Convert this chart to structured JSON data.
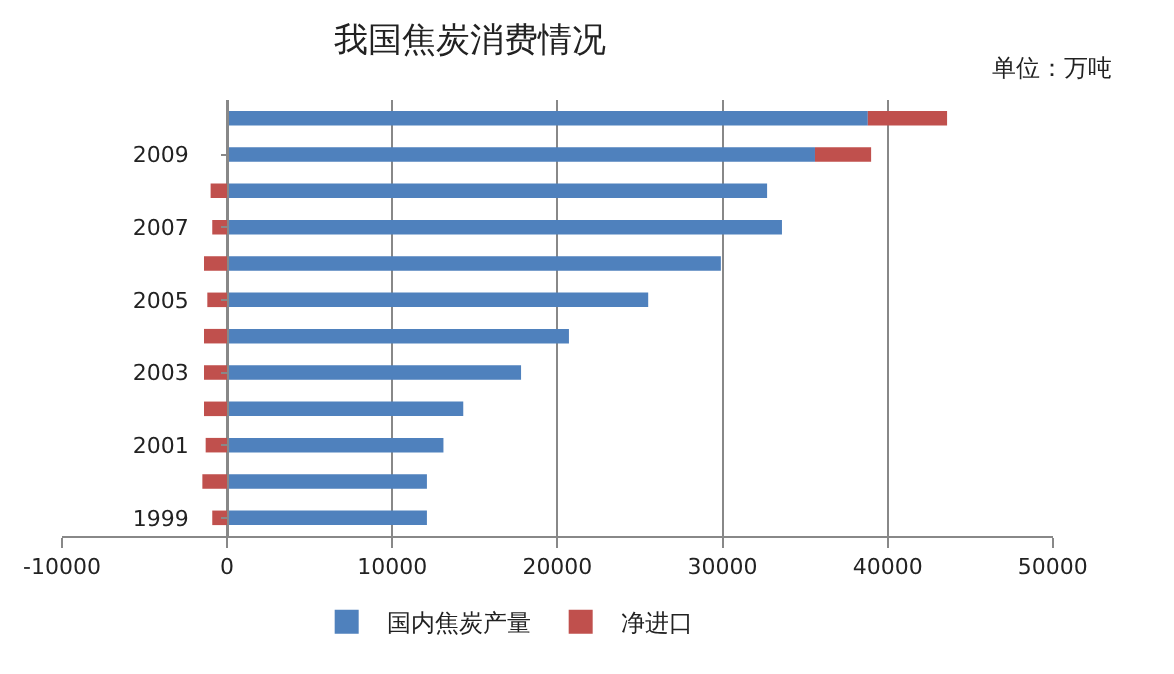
{
  "chart_data": {
    "type": "bar",
    "orientation": "horizontal",
    "stacked": true,
    "title": "我国焦炭消费情况",
    "subtitle": "单位：万吨",
    "categories": [
      null,
      "2009",
      null,
      "2007",
      null,
      "2005",
      null,
      "2003",
      null,
      "2001",
      null,
      "1999"
    ],
    "series": [
      {
        "name": "国内焦炭产量",
        "color": "#4f81bd",
        "values": [
          38800,
          35600,
          32700,
          33600,
          29900,
          25500,
          20700,
          17800,
          14300,
          13100,
          12100,
          12100
        ]
      },
      {
        "name": "净进口",
        "color": "#c0504d",
        "values": [
          4800,
          3400,
          -1000,
          -900,
          -1400,
          -1200,
          -1400,
          -1400,
          -1400,
          -1300,
          -1500,
          -900
        ]
      }
    ],
    "xlim": [
      -10000,
      50000
    ],
    "xticks": [
      -10000,
      0,
      10000,
      20000,
      30000,
      40000,
      50000
    ],
    "grid": "x",
    "legend": "bottom"
  }
}
